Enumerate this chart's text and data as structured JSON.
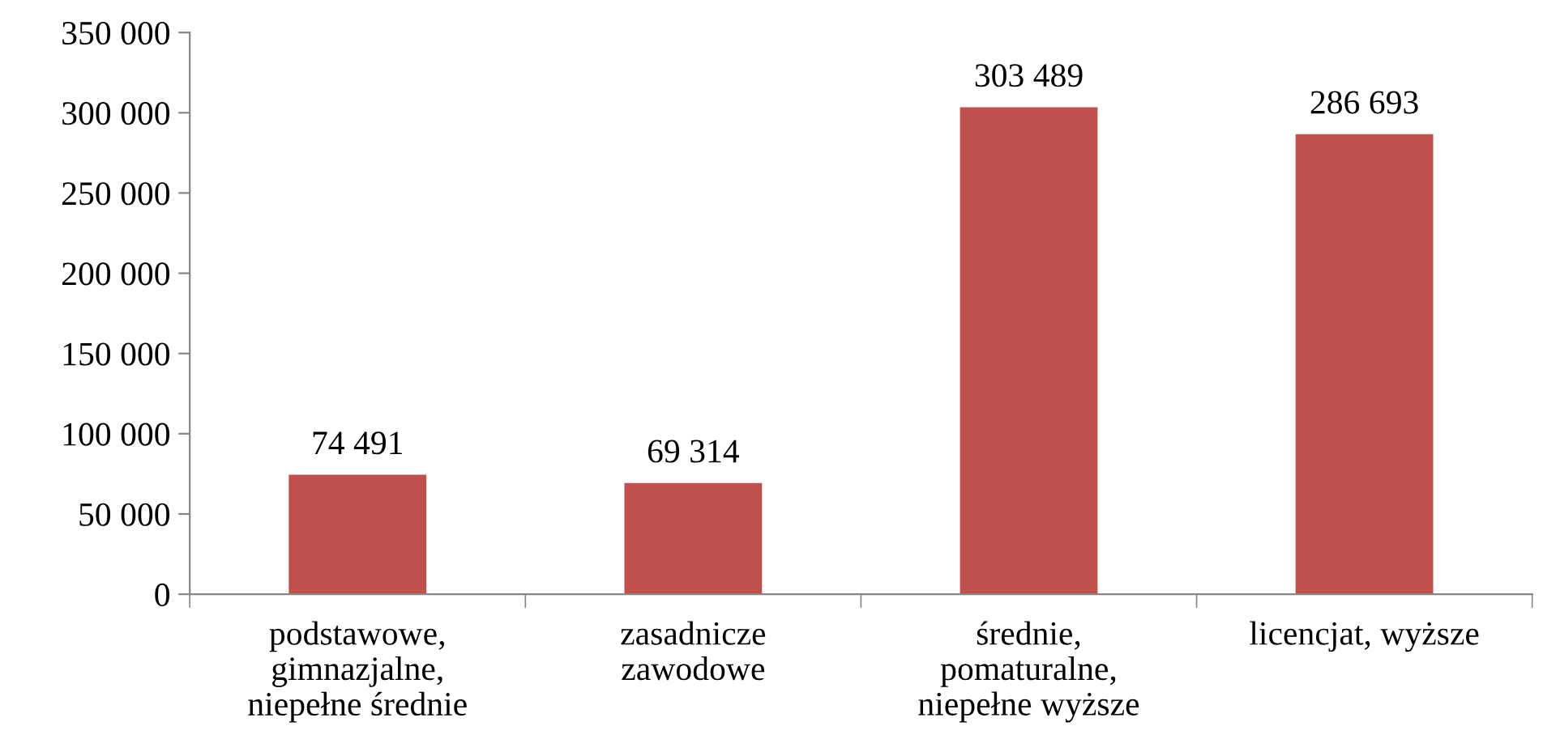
{
  "chart_data": {
    "type": "bar",
    "categories": [
      "podstawowe,\ngimnazjalne,\nniepełne średnie",
      "zasadnicze\nzawodowe",
      "średnie,\npomaturalne,\nniepełne wyższe",
      "licencjat, wyższe"
    ],
    "values": [
      74491,
      69314,
      303489,
      286693
    ],
    "value_labels": [
      "74 491",
      "69 314",
      "303 489",
      "286 693"
    ],
    "color": "#c0504d",
    "ylim": [
      0,
      350000
    ],
    "yticks": [
      {
        "value": 0,
        "label": "0"
      },
      {
        "value": 50000,
        "label": "50 000"
      },
      {
        "value": 100000,
        "label": "100 000"
      },
      {
        "value": 150000,
        "label": "150 000"
      },
      {
        "value": 200000,
        "label": "200 000"
      },
      {
        "value": 250000,
        "label": "250 000"
      },
      {
        "value": 300000,
        "label": "300 000"
      },
      {
        "value": 350000,
        "label": "350 000"
      }
    ],
    "grid": false
  }
}
